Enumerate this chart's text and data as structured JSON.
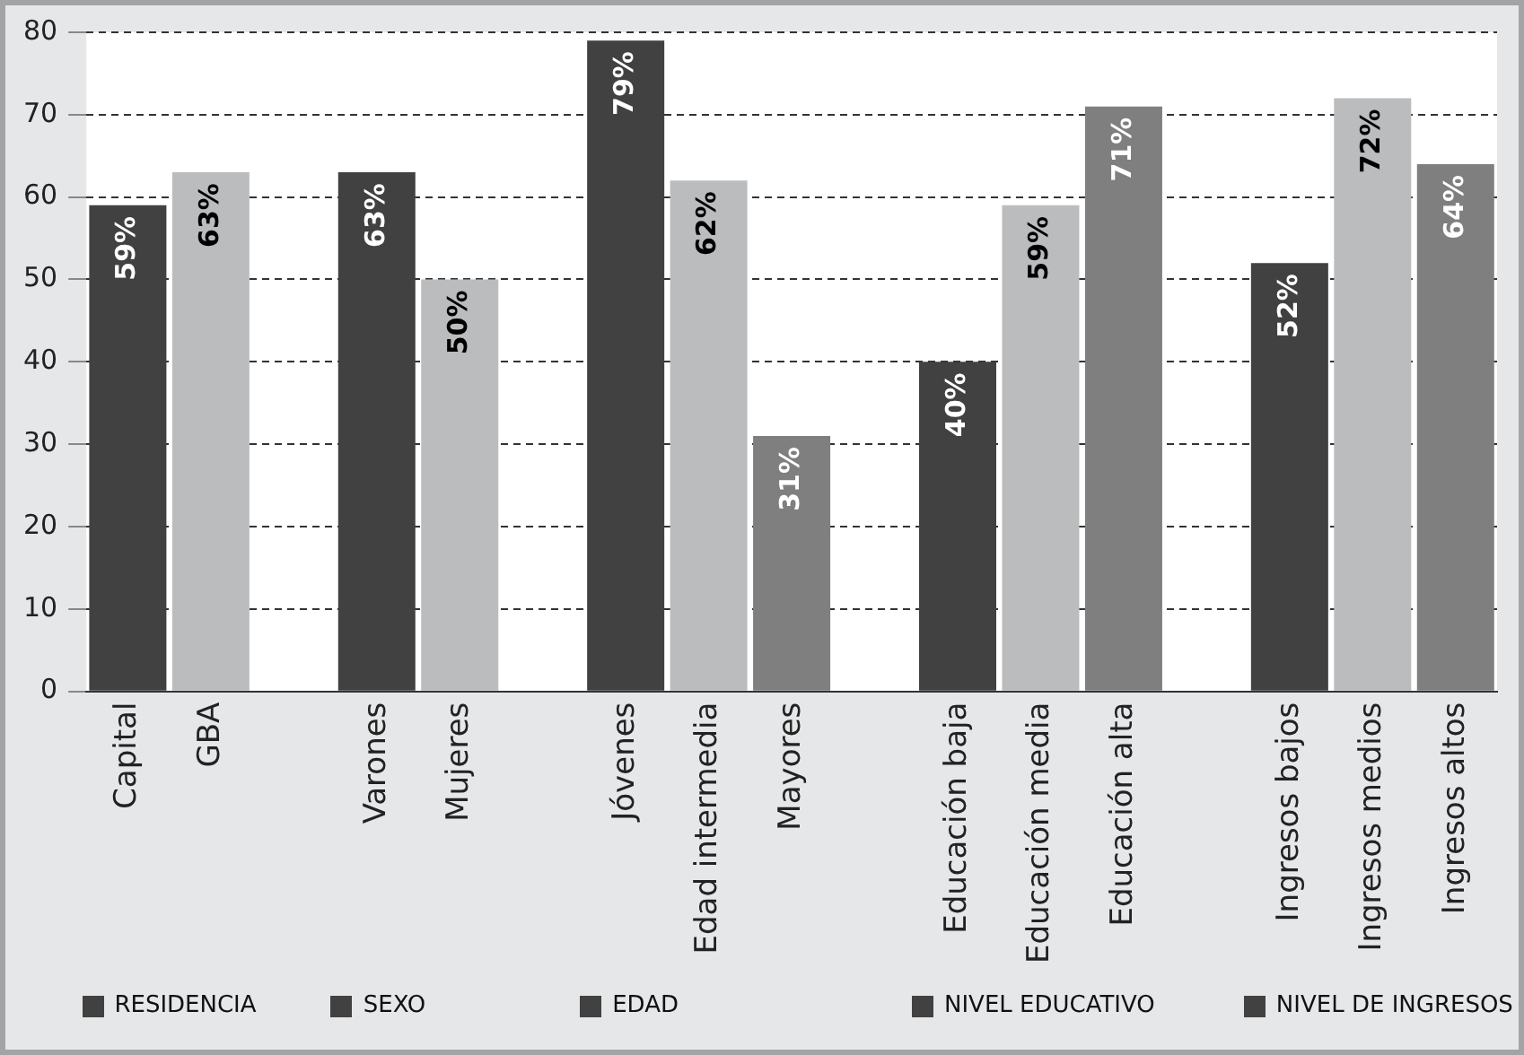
{
  "chart_data": {
    "type": "bar",
    "categories": [
      "Capital",
      "GBA",
      null,
      "Varones",
      "Mujeres",
      null,
      "Jóvenes",
      "Edad intermedia",
      "Mayores",
      null,
      "Educación baja",
      "Educación media",
      "Educación alta",
      null,
      "Ingresos bajos",
      "Ingresos medios",
      "Ingresos altos"
    ],
    "values": [
      59,
      63,
      null,
      63,
      50,
      null,
      79,
      62,
      31,
      null,
      40,
      59,
      71,
      null,
      52,
      72,
      64
    ],
    "colors": [
      "#414141",
      "#bbbcbe",
      null,
      "#414141",
      "#bbbcbe",
      null,
      "#414141",
      "#bbbcbe",
      "#7f7f80",
      null,
      "#414141",
      "#bbbcbe",
      "#7f7f80",
      null,
      "#414141",
      "#bbbcbe",
      "#7f7f80"
    ],
    "value_labels": [
      "59%",
      "63%",
      null,
      "63%",
      "50%",
      null,
      "79%",
      "62%",
      "31%",
      null,
      "40%",
      "59%",
      "71%",
      null,
      "52%",
      "72%",
      "64%"
    ],
    "ylim": [
      0,
      80
    ],
    "yticks": [
      0,
      10,
      20,
      30,
      40,
      50,
      60,
      70,
      80
    ],
    "grid": "y",
    "annotations": [
      "RESIDENCIA",
      "SEXO",
      "EDAD",
      "NIVEL EDUCATIVO",
      "NIVEL DE INGRESOS"
    ]
  }
}
